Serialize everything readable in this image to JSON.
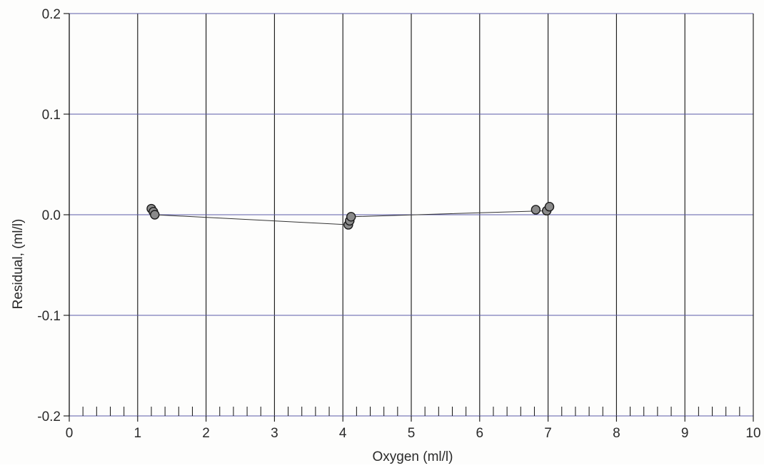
{
  "chart_data": {
    "type": "scatter",
    "title": "",
    "xlabel": "Oxygen (ml/l)",
    "ylabel": "Residual, (ml/l)",
    "xlim": [
      0,
      10
    ],
    "ylim": [
      -0.2,
      0.2
    ],
    "x_ticks": [
      0,
      1,
      2,
      3,
      4,
      5,
      6,
      7,
      8,
      9,
      10
    ],
    "x_tick_labels": [
      "0",
      "1",
      "2",
      "3",
      "4",
      "5",
      "6",
      "7",
      "8",
      "9",
      "10"
    ],
    "y_ticks": [
      0.2,
      0.1,
      0.0,
      -0.1,
      -0.2
    ],
    "y_tick_labels": [
      "0.2",
      "0.1",
      "0.0",
      "-0.1",
      "-0.2"
    ],
    "minor_x_ticks": [
      0.2,
      0.4,
      0.6,
      0.8,
      1.2,
      1.4,
      1.6,
      1.8,
      2.2,
      2.4,
      2.6,
      2.8,
      3.2,
      3.4,
      3.6,
      3.8,
      4.2,
      4.4,
      4.6,
      4.8,
      5.2,
      5.4,
      5.6,
      5.8,
      6.2,
      6.4,
      6.6,
      6.8,
      7.2,
      7.4,
      7.6,
      7.8,
      8.2,
      8.4,
      8.6,
      8.8,
      9.2,
      9.4,
      9.6,
      9.8
    ],
    "grid": true,
    "colors": {
      "vertical_grid": "#111111",
      "horizontal_grid": "#5a5aa8",
      "marker_fill": "#8a8a8a",
      "marker_stroke": "#1a1a1a",
      "line": "#333333"
    },
    "series": [
      {
        "points": [
          {
            "x": 1.2,
            "y": 0.006
          },
          {
            "x": 1.23,
            "y": 0.003
          },
          {
            "x": 1.25,
            "y": 0.0
          },
          {
            "x": 4.08,
            "y": -0.01
          },
          {
            "x": 4.1,
            "y": -0.006
          },
          {
            "x": 4.12,
            "y": -0.002
          },
          {
            "x": 6.82,
            "y": 0.005
          },
          {
            "x": 6.98,
            "y": 0.004
          },
          {
            "x": 7.02,
            "y": 0.008
          }
        ],
        "line": [
          {
            "x": 1.25,
            "y": 0.0
          },
          {
            "x": 4.1,
            "y": -0.01
          },
          {
            "x": 4.12,
            "y": -0.002
          },
          {
            "x": 7.0,
            "y": 0.004
          }
        ]
      }
    ]
  }
}
